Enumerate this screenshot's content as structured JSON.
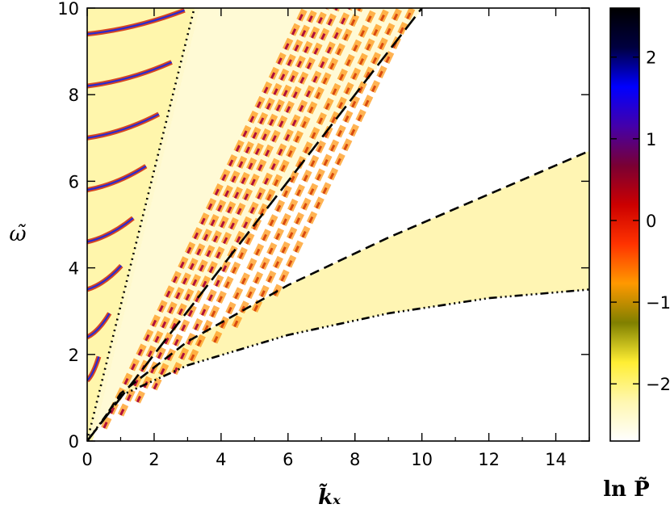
{
  "chart_data": {
    "type": "heatmap",
    "xlabel": "k̃ₓ",
    "ylabel": "ω̃",
    "colorbar_label": "ln P̃",
    "xlim": [
      0,
      15
    ],
    "ylim": [
      0,
      10
    ],
    "x_ticks": [
      "0",
      "2",
      "4",
      "6",
      "8",
      "10",
      "12",
      "14"
    ],
    "y_ticks": [
      "0",
      "2",
      "4",
      "6",
      "8",
      "10"
    ],
    "colorbar_range": [
      -2.7,
      2.6
    ],
    "colorbar_ticks": [
      "2",
      "1",
      "0",
      "−1",
      "−2"
    ],
    "colormap": [
      "#ffffff",
      "#fff7b0",
      "#ffee33",
      "#808000",
      "#ff9900",
      "#ff3300",
      "#cc0000",
      "#7a0033",
      "#4400aa",
      "#0000ff",
      "#000040",
      "#000000"
    ],
    "curves": [
      {
        "style": "dotted",
        "points": [
          [
            0,
            0
          ],
          [
            3.2,
            10
          ]
        ]
      },
      {
        "style": "long-dashed",
        "points": [
          [
            0,
            0
          ],
          [
            10,
            10
          ]
        ]
      },
      {
        "style": "dashed",
        "points": [
          [
            0.4,
            0.4
          ],
          [
            1,
            1.1
          ],
          [
            3,
            2.3
          ],
          [
            6,
            3.6
          ],
          [
            9,
            4.7
          ],
          [
            12,
            5.7
          ],
          [
            15,
            6.7
          ]
        ]
      },
      {
        "style": "dash-dot-dot-dot",
        "points": [
          [
            0,
            0
          ],
          [
            1,
            1.05
          ],
          [
            3,
            1.75
          ],
          [
            6,
            2.45
          ],
          [
            9,
            2.95
          ],
          [
            12,
            3.3
          ],
          [
            15,
            3.5
          ]
        ]
      }
    ],
    "ridges": [
      {
        "type": "flat-arc",
        "omega": [
          1.4,
          2.4,
          3.5,
          4.6,
          5.8,
          7.0,
          8.2,
          9.4
        ]
      },
      {
        "type": "diagonal",
        "start_kx": [
          0.5,
          1.0,
          1.5,
          2.0,
          2.6,
          3.1,
          3.8,
          4.4,
          5.0,
          5.6
        ]
      }
    ]
  }
}
